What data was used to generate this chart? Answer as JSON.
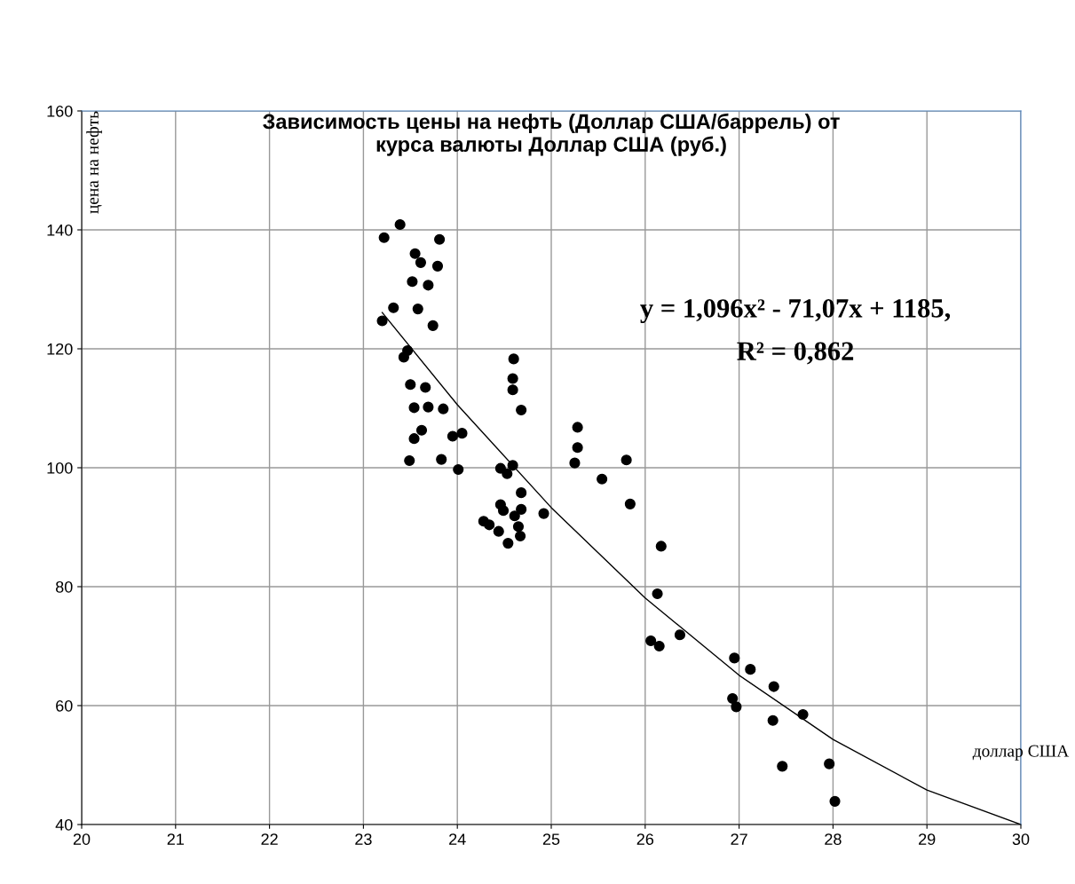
{
  "chart_data": {
    "type": "scatter",
    "title": "Зависимость цены на нефть (Доллар США/баррель) от\nкурса валюты Доллар США (руб.)",
    "xlabel": "доллар США",
    "ylabel": "цена на нефть",
    "xlim": [
      20,
      30
    ],
    "ylim": [
      40,
      160
    ],
    "xticks": [
      20,
      21,
      22,
      23,
      24,
      25,
      26,
      27,
      28,
      29,
      30
    ],
    "yticks": [
      40,
      60,
      80,
      100,
      120,
      140,
      160
    ],
    "grid": true,
    "series": [
      {
        "color": "#000000",
        "marker": "circle",
        "x": [
          23.39,
          23.22,
          23.81,
          23.55,
          23.61,
          23.79,
          23.52,
          23.69,
          23.32,
          23.58,
          23.74,
          23.2,
          23.47,
          23.43,
          24.6,
          24.59,
          24.59,
          24.68,
          23.5,
          23.66,
          23.54,
          23.69,
          23.85,
          23.62,
          23.54,
          23.95,
          24.05,
          23.49,
          23.83,
          24.01,
          24.46,
          24.59,
          24.53,
          24.68,
          24.46,
          24.49,
          24.61,
          24.68,
          24.92,
          24.28,
          24.34,
          24.44,
          24.65,
          24.67,
          24.54,
          25.28,
          25.28,
          25.25,
          25.8,
          25.54,
          25.84,
          26.17,
          26.13,
          26.06,
          26.15,
          26.37,
          26.95,
          27.12,
          27.37,
          26.93,
          26.97,
          27.36,
          27.68,
          27.46,
          27.96,
          28.02
        ],
        "values": [
          140.9,
          138.7,
          138.4,
          136.0,
          134.5,
          133.9,
          131.3,
          130.7,
          126.9,
          126.7,
          123.9,
          124.7,
          119.7,
          118.6,
          118.3,
          115.0,
          113.1,
          109.7,
          114.0,
          113.5,
          110.1,
          110.2,
          109.9,
          106.3,
          104.9,
          105.3,
          105.8,
          101.2,
          101.4,
          99.7,
          99.9,
          100.4,
          99.0,
          95.8,
          93.8,
          92.8,
          91.9,
          93.0,
          92.3,
          91.0,
          90.4,
          89.3,
          90.1,
          88.5,
          87.3,
          106.8,
          103.4,
          100.8,
          101.3,
          98.1,
          93.9,
          86.8,
          78.8,
          70.9,
          70.0,
          71.9,
          68.0,
          66.1,
          63.2,
          61.2,
          59.8,
          57.5,
          58.5,
          49.8,
          50.2,
          43.9
        ]
      },
      {
        "type": "line",
        "color": "#000000",
        "marker": "none",
        "x": [
          23.2,
          24,
          25,
          26,
          27,
          28,
          29,
          30
        ],
        "values": [
          126.1,
          110.6,
          93.3,
          78.1,
          65.1,
          54.3,
          45.8,
          40
        ]
      }
    ],
    "annotations": [
      "y = 1,096x² - 71,07x + 1185,",
      "R² = 0,862"
    ]
  }
}
